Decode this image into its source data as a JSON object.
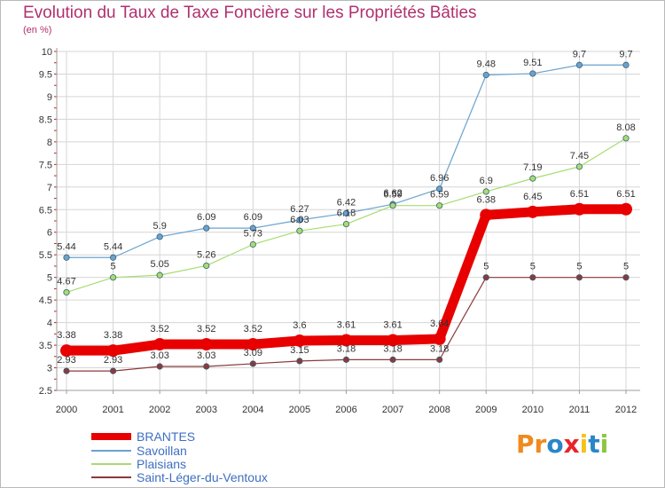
{
  "title": "Evolution du Taux de Taxe Foncière sur les Propriétés Bâties",
  "unit_label": "(en %)",
  "logo": {
    "letters": [
      "P",
      "r",
      "o",
      "x",
      "i",
      "t",
      "i"
    ],
    "colors": [
      "#f08a1c",
      "#f08a1c",
      "#2a86c8",
      "#e8242b",
      "#f6c21b",
      "#2a86c8",
      "#8cc63f"
    ]
  },
  "colors": {
    "title": "#b0306f",
    "grid": "#d5d5d5",
    "axis": "#9e9e9e"
  },
  "chart_data": {
    "type": "line",
    "x": [
      "2000",
      "2001",
      "2002",
      "2003",
      "2004",
      "2005",
      "2006",
      "2007",
      "2008",
      "2009",
      "2010",
      "2011",
      "2012"
    ],
    "ylim": [
      2.5,
      10
    ],
    "yticks": [
      "2.5",
      "3",
      "3.5",
      "4",
      "4.5",
      "5",
      "5.5",
      "6",
      "6.5",
      "7",
      "7.5",
      "8",
      "8.5",
      "9",
      "9.5",
      "10"
    ],
    "grid": true,
    "legend_position": "bottom-left",
    "series": [
      {
        "name": "BRANTES",
        "color": "#e80000",
        "values": [
          3.38,
          3.38,
          3.52,
          3.52,
          3.52,
          3.6,
          3.61,
          3.61,
          3.64,
          6.38,
          6.45,
          6.51,
          6.51
        ],
        "labels": [
          "3.38",
          "3.38",
          "3.52",
          "3.52",
          "3.52",
          "3.6",
          "3.61",
          "3.61",
          "3.64",
          "6.38",
          "6.45",
          "6.51",
          "6.51"
        ]
      },
      {
        "name": "Savoillan",
        "color": "#6aa3cf",
        "values": [
          5.44,
          5.44,
          5.9,
          6.09,
          6.09,
          6.27,
          6.42,
          6.62,
          6.96,
          9.48,
          9.51,
          9.7,
          9.7
        ],
        "labels": [
          "5.44",
          "5.44",
          "5.9",
          "6.09",
          "6.09",
          "6.27",
          "6.42",
          "6.62",
          "6.96",
          "9.48",
          "9.51",
          "9.7",
          "9.7"
        ]
      },
      {
        "name": "Plaisians",
        "color": "#a6dd70",
        "values": [
          4.67,
          5,
          5.05,
          5.26,
          5.73,
          6.03,
          6.18,
          6.59,
          6.59,
          6.9,
          7.19,
          7.45,
          8.08
        ],
        "labels": [
          "4.67",
          "5",
          "5.05",
          "5.26",
          "5.73",
          "6.03",
          "6.18",
          "6.59",
          "6.59",
          "6.9",
          "7.19",
          "7.45",
          "8.08"
        ]
      },
      {
        "name": "Saint-Léger-du-Ventoux",
        "color": "#8b3a3a",
        "values": [
          2.93,
          2.93,
          3.03,
          3.03,
          3.09,
          3.15,
          3.18,
          3.18,
          3.18,
          5,
          5,
          5,
          5
        ],
        "labels": [
          "2.93",
          "2.93",
          "3.03",
          "3.03",
          "3.09",
          "3.15",
          "3.18",
          "3.18",
          "3.18",
          "5",
          "5",
          "5",
          "5"
        ]
      }
    ]
  }
}
